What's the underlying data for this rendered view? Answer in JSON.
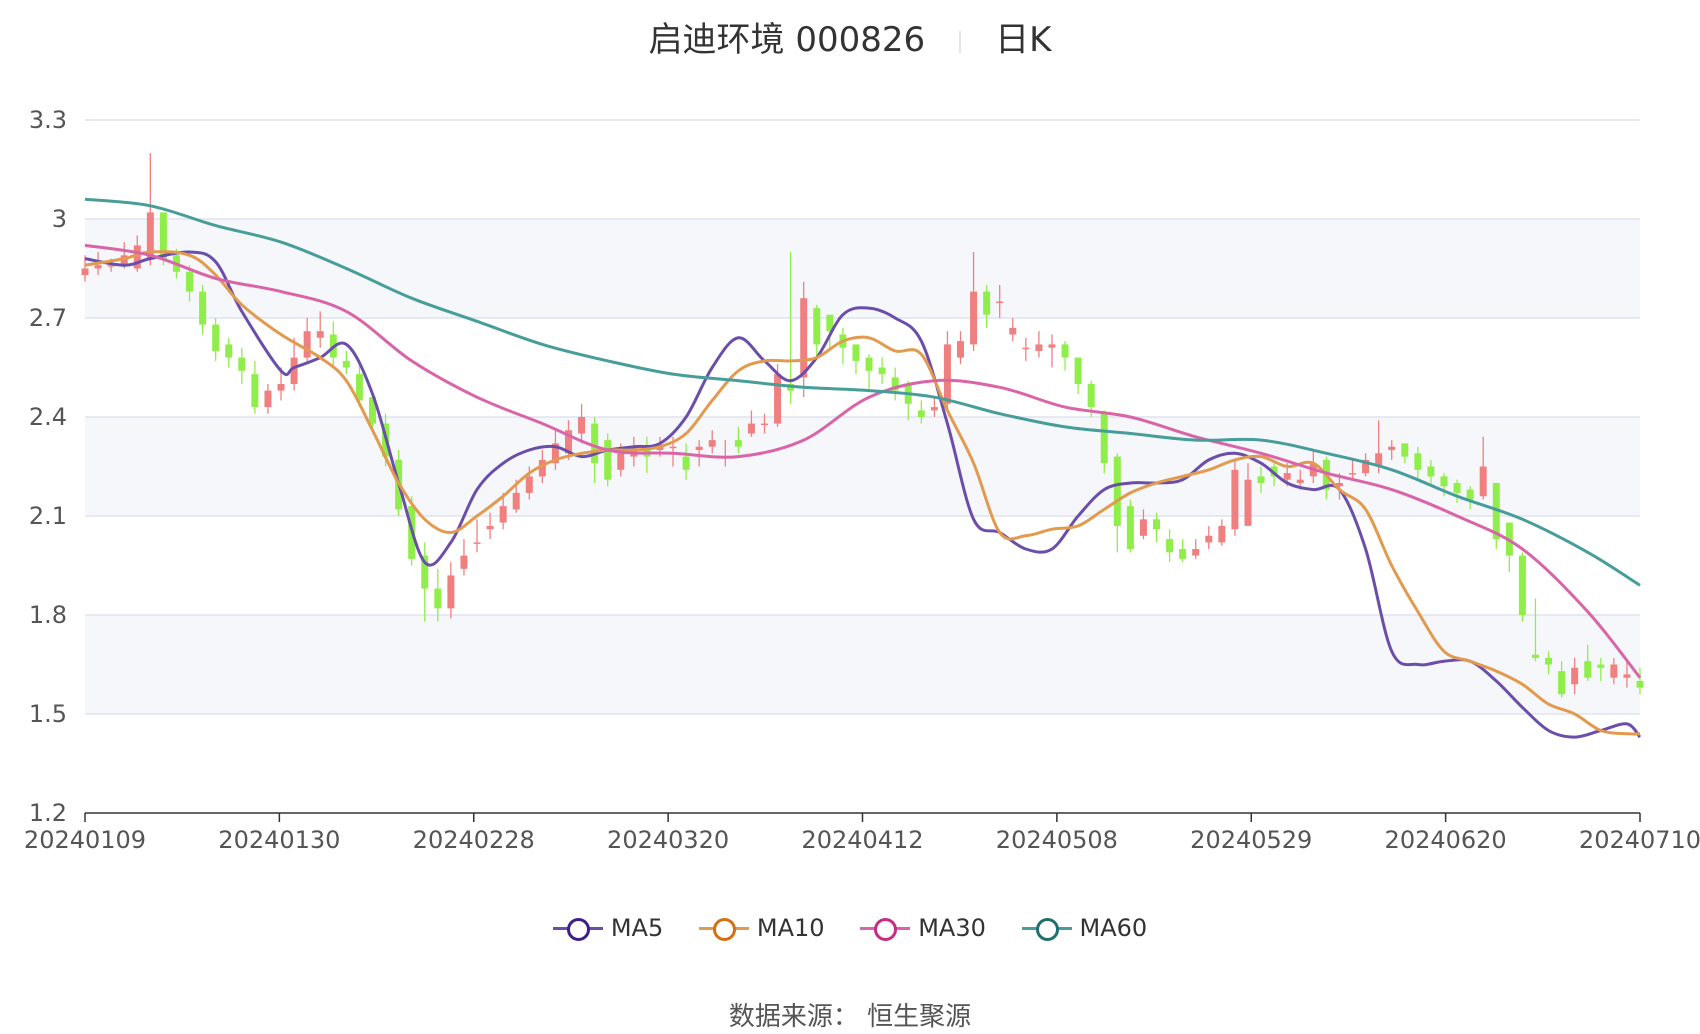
{
  "title": {
    "main": "启迪环境 000826",
    "sub": "日K"
  },
  "source": {
    "label": "数据来源：",
    "value": "恒生聚源"
  },
  "colors": {
    "up": "#f08080",
    "down": "#90ee4a",
    "grid": "#dfe3ee",
    "band": "#f5f7fb",
    "axis": "#555555"
  },
  "chart_data": {
    "type": "candlestick",
    "x_tick_labels": [
      "20240109",
      "20240130",
      "20240228",
      "20240320",
      "20240412",
      "20240508",
      "20240529",
      "20240620",
      "20240710"
    ],
    "y_ticks": [
      1.2,
      1.5,
      1.8,
      2.1,
      2.4,
      2.7,
      3,
      3.3
    ],
    "y_tick_labels": [
      "1.2",
      "1.5",
      "1.8",
      "2.1",
      "2.4",
      "2.7",
      "3",
      "3.3"
    ],
    "ylim": [
      1.2,
      3.3
    ],
    "n_days": 120,
    "legend_position": "bottom",
    "grid": true,
    "candles": {
      "open": [
        2.83,
        2.85,
        2.86,
        2.86,
        2.85,
        2.88,
        3.02,
        2.89,
        2.84,
        2.78,
        2.68,
        2.62,
        2.58,
        2.53,
        2.43,
        2.48,
        2.5,
        2.58,
        2.64,
        2.65,
        2.57,
        2.53,
        2.46,
        2.38,
        2.27,
        2.13,
        1.98,
        1.88,
        1.82,
        1.94,
        2.02,
        2.06,
        2.08,
        2.12,
        2.17,
        2.22,
        2.26,
        2.29,
        2.35,
        2.38,
        2.33,
        2.24,
        2.28,
        2.31,
        2.3,
        2.31,
        2.28,
        2.3,
        2.31,
        2.28,
        2.33,
        2.35,
        2.38,
        2.38,
        2.5,
        2.52,
        2.73,
        2.71,
        2.65,
        2.62,
        2.58,
        2.55,
        2.52,
        2.5,
        2.42,
        2.42,
        2.44,
        2.58,
        2.62,
        2.78,
        2.75,
        2.65,
        2.61,
        2.6,
        2.61,
        2.62,
        2.58,
        2.5,
        2.41,
        2.28,
        2.13,
        2.04,
        2.09,
        2.03,
        2.0,
        1.98,
        2.02,
        2.02,
        2.06,
        2.07,
        2.22,
        2.25,
        2.21,
        2.2,
        2.22,
        2.27,
        2.19,
        2.23,
        2.23,
        2.25,
        2.3,
        2.32,
        2.29,
        2.25,
        2.22,
        2.2,
        2.18,
        2.16,
        2.2,
        2.08,
        1.98,
        1.68,
        1.67,
        1.63,
        1.59,
        1.66,
        1.65,
        1.61,
        1.61,
        1.6
      ],
      "close": [
        2.85,
        2.86,
        2.86,
        2.89,
        2.92,
        3.02,
        2.88,
        2.84,
        2.78,
        2.68,
        2.6,
        2.58,
        2.54,
        2.43,
        2.48,
        2.5,
        2.58,
        2.66,
        2.66,
        2.58,
        2.55,
        2.45,
        2.38,
        2.28,
        2.12,
        1.97,
        1.88,
        1.82,
        1.92,
        1.98,
        2.02,
        2.07,
        2.13,
        2.17,
        2.22,
        2.27,
        2.32,
        2.36,
        2.4,
        2.26,
        2.21,
        2.29,
        2.31,
        2.28,
        2.31,
        2.31,
        2.24,
        2.31,
        2.33,
        2.28,
        2.31,
        2.38,
        2.38,
        2.53,
        2.48,
        2.76,
        2.62,
        2.66,
        2.61,
        2.57,
        2.54,
        2.53,
        2.48,
        2.44,
        2.4,
        2.43,
        2.62,
        2.63,
        2.78,
        2.71,
        2.75,
        2.67,
        2.61,
        2.62,
        2.62,
        2.58,
        2.5,
        2.43,
        2.26,
        2.07,
        2.0,
        2.09,
        2.06,
        1.99,
        1.97,
        2.0,
        2.04,
        2.07,
        2.24,
        2.21,
        2.2,
        2.22,
        2.23,
        2.21,
        2.26,
        2.18,
        2.2,
        2.23,
        2.27,
        2.29,
        2.31,
        2.28,
        2.24,
        2.22,
        2.19,
        2.17,
        2.15,
        2.25,
        2.03,
        1.98,
        1.8,
        1.67,
        1.65,
        1.56,
        1.64,
        1.61,
        1.64,
        1.65,
        1.62,
        1.58
      ],
      "high": [
        2.89,
        2.9,
        2.88,
        2.93,
        2.95,
        3.2,
        3.0,
        2.91,
        2.86,
        2.8,
        2.7,
        2.64,
        2.61,
        2.57,
        2.5,
        2.55,
        2.64,
        2.7,
        2.72,
        2.69,
        2.6,
        2.56,
        2.48,
        2.41,
        2.3,
        2.16,
        2.02,
        1.94,
        1.96,
        2.03,
        2.09,
        2.11,
        2.17,
        2.21,
        2.25,
        2.3,
        2.36,
        2.39,
        2.44,
        2.4,
        2.35,
        2.32,
        2.34,
        2.34,
        2.34,
        2.34,
        2.32,
        2.33,
        2.36,
        2.33,
        2.37,
        2.42,
        2.41,
        2.56,
        2.9,
        2.81,
        2.74,
        2.69,
        2.67,
        2.62,
        2.59,
        2.58,
        2.55,
        2.51,
        2.45,
        2.46,
        2.66,
        2.66,
        2.9,
        2.8,
        2.8,
        2.7,
        2.64,
        2.66,
        2.65,
        2.63,
        2.58,
        2.51,
        2.42,
        2.29,
        2.15,
        2.12,
        2.11,
        2.06,
        2.03,
        2.03,
        2.07,
        2.09,
        2.27,
        2.26,
        2.25,
        2.26,
        2.26,
        2.24,
        2.3,
        2.28,
        2.23,
        2.27,
        2.29,
        2.39,
        2.33,
        2.32,
        2.31,
        2.27,
        2.23,
        2.21,
        2.19,
        2.34,
        2.2,
        2.03,
        1.99,
        1.85,
        1.69,
        1.66,
        1.67,
        1.71,
        1.67,
        1.67,
        1.66,
        1.64
      ],
      "low": [
        2.81,
        2.83,
        2.84,
        2.85,
        2.84,
        2.86,
        2.86,
        2.82,
        2.75,
        2.65,
        2.57,
        2.55,
        2.5,
        2.41,
        2.41,
        2.45,
        2.48,
        2.56,
        2.61,
        2.55,
        2.53,
        2.43,
        2.36,
        2.25,
        2.1,
        1.95,
        1.78,
        1.78,
        1.79,
        1.92,
        1.99,
        2.03,
        2.06,
        2.11,
        2.15,
        2.2,
        2.24,
        2.27,
        2.32,
        2.2,
        2.19,
        2.22,
        2.25,
        2.23,
        2.28,
        2.25,
        2.21,
        2.25,
        2.29,
        2.25,
        2.29,
        2.34,
        2.35,
        2.37,
        2.44,
        2.46,
        2.58,
        2.6,
        2.56,
        2.53,
        2.48,
        2.5,
        2.45,
        2.39,
        2.38,
        2.4,
        2.42,
        2.56,
        2.6,
        2.67,
        2.7,
        2.63,
        2.57,
        2.58,
        2.55,
        2.54,
        2.47,
        2.4,
        2.23,
        1.99,
        1.99,
        2.03,
        2.02,
        1.96,
        1.96,
        1.97,
        2.0,
        2.01,
        2.04,
        2.17,
        2.17,
        2.19,
        2.19,
        2.18,
        2.2,
        2.15,
        2.15,
        2.21,
        2.22,
        2.23,
        2.27,
        2.26,
        2.21,
        2.19,
        2.16,
        2.14,
        2.12,
        2.15,
        2.0,
        1.93,
        1.78,
        1.66,
        1.62,
        1.55,
        1.56,
        1.6,
        1.6,
        1.59,
        1.58,
        1.56
      ]
    },
    "series": [
      {
        "name": "MA5",
        "color": "#6a4eaa",
        "x": [
          0,
          3,
          5,
          8,
          10,
          12,
          15,
          16,
          18,
          20,
          22,
          24,
          26,
          28,
          30,
          32,
          34,
          36,
          38,
          40,
          42,
          44,
          46,
          48,
          50,
          52,
          54,
          56,
          58,
          60,
          62,
          64,
          66,
          68,
          70,
          72,
          74,
          76,
          78,
          80,
          82,
          84,
          86,
          88,
          90,
          92,
          94,
          96,
          98,
          100,
          102,
          104,
          106,
          108,
          110,
          112,
          114,
          116,
          118,
          119
        ],
        "y": [
          2.88,
          2.86,
          2.88,
          2.9,
          2.87,
          2.72,
          2.54,
          2.55,
          2.58,
          2.62,
          2.47,
          2.2,
          1.96,
          2.02,
          2.18,
          2.26,
          2.3,
          2.31,
          2.28,
          2.3,
          2.31,
          2.32,
          2.4,
          2.55,
          2.64,
          2.57,
          2.51,
          2.58,
          2.71,
          2.73,
          2.7,
          2.63,
          2.38,
          2.09,
          2.05,
          2.0,
          2.0,
          2.1,
          2.18,
          2.2,
          2.2,
          2.21,
          2.27,
          2.29,
          2.26,
          2.2,
          2.18,
          2.18,
          2.0,
          1.69,
          1.65,
          1.66,
          1.66,
          1.6,
          1.52,
          1.45,
          1.43,
          1.45,
          1.47,
          1.43
        ]
      },
      {
        "name": "MA10",
        "color": "#e29a4e",
        "x": [
          0,
          3,
          5,
          8,
          10,
          12,
          15,
          18,
          20,
          22,
          24,
          26,
          28,
          30,
          32,
          34,
          36,
          38,
          40,
          42,
          44,
          46,
          48,
          50,
          52,
          54,
          56,
          58,
          60,
          62,
          64,
          66,
          68,
          70,
          72,
          74,
          76,
          78,
          80,
          82,
          84,
          86,
          88,
          90,
          92,
          94,
          96,
          98,
          100,
          102,
          104,
          106,
          108,
          110,
          112,
          114,
          116,
          118,
          119
        ],
        "y": [
          2.86,
          2.88,
          2.9,
          2.89,
          2.83,
          2.74,
          2.65,
          2.58,
          2.51,
          2.36,
          2.2,
          2.09,
          2.05,
          2.1,
          2.16,
          2.23,
          2.27,
          2.29,
          2.3,
          2.3,
          2.31,
          2.35,
          2.45,
          2.54,
          2.57,
          2.57,
          2.58,
          2.63,
          2.64,
          2.6,
          2.59,
          2.42,
          2.26,
          2.05,
          2.04,
          2.06,
          2.07,
          2.12,
          2.17,
          2.2,
          2.22,
          2.24,
          2.27,
          2.28,
          2.25,
          2.26,
          2.18,
          2.12,
          1.95,
          1.81,
          1.69,
          1.66,
          1.63,
          1.59,
          1.53,
          1.5,
          1.45,
          1.44,
          1.44
        ]
      },
      {
        "name": "MA30",
        "color": "#d965a8",
        "x": [
          0,
          5,
          10,
          15,
          20,
          25,
          30,
          35,
          40,
          45,
          50,
          55,
          60,
          65,
          70,
          75,
          80,
          85,
          90,
          95,
          100,
          105,
          110,
          115,
          119
        ],
        "y": [
          2.92,
          2.89,
          2.82,
          2.78,
          2.72,
          2.57,
          2.46,
          2.38,
          2.3,
          2.29,
          2.28,
          2.33,
          2.46,
          2.51,
          2.49,
          2.43,
          2.4,
          2.34,
          2.29,
          2.23,
          2.18,
          2.1,
          2.0,
          1.81,
          1.61
        ]
      },
      {
        "name": "MA60",
        "color": "#479d9a",
        "x": [
          0,
          5,
          10,
          15,
          20,
          25,
          30,
          35,
          40,
          45,
          50,
          55,
          60,
          65,
          70,
          75,
          80,
          85,
          90,
          95,
          100,
          105,
          110,
          115,
          119
        ],
        "y": [
          3.06,
          3.04,
          2.98,
          2.93,
          2.85,
          2.76,
          2.69,
          2.62,
          2.57,
          2.53,
          2.51,
          2.49,
          2.48,
          2.46,
          2.41,
          2.37,
          2.35,
          2.33,
          2.33,
          2.29,
          2.24,
          2.16,
          2.09,
          1.99,
          1.89
        ]
      }
    ]
  }
}
